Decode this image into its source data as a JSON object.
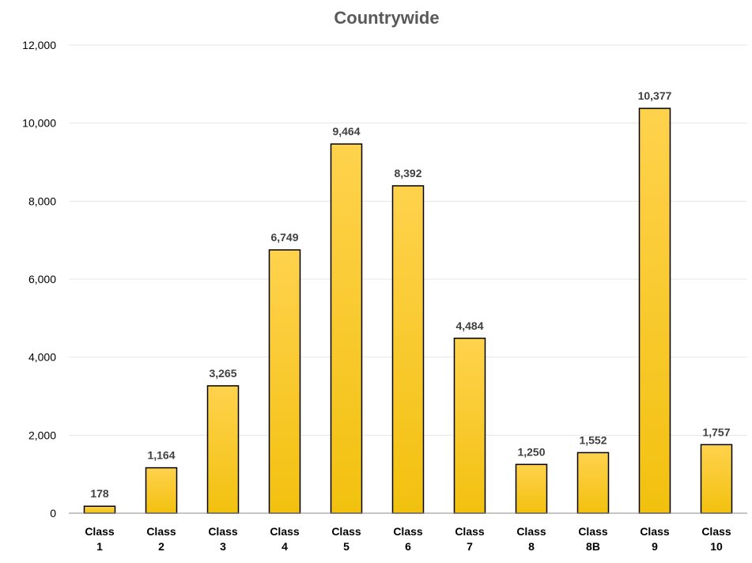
{
  "chart_data": {
    "type": "bar",
    "title": "Countrywide",
    "xlabel": "",
    "ylabel": "",
    "categories": [
      [
        "Class",
        "1"
      ],
      [
        "Class",
        "2"
      ],
      [
        "Class",
        "3"
      ],
      [
        "Class",
        "4"
      ],
      [
        "Class",
        "5"
      ],
      [
        "Class",
        "6"
      ],
      [
        "Class",
        "7"
      ],
      [
        "Class",
        "8"
      ],
      [
        "Class",
        "8B"
      ],
      [
        "Class",
        "9"
      ],
      [
        "Class",
        "10"
      ]
    ],
    "values": [
      178,
      1164,
      3265,
      6749,
      9464,
      8392,
      4484,
      1250,
      1552,
      10377,
      1757
    ],
    "value_labels": [
      "178",
      "1,164",
      "3,265",
      "6,749",
      "9,464",
      "8,392",
      "4,484",
      "1,250",
      "1,552",
      "10,377",
      "1,757"
    ],
    "ylim": [
      0,
      12000
    ],
    "yticks": [
      0,
      2000,
      4000,
      6000,
      8000,
      10000,
      12000
    ],
    "ytick_labels": [
      "0",
      "2,000",
      "4,000",
      "6,000",
      "8,000",
      "10,000",
      "12,000"
    ],
    "grid": true,
    "legend": "none",
    "colors": {
      "bar_top": "#ffd24d",
      "bar_bottom": "#f2c10f",
      "bar_border": "#000000",
      "title": "#595959",
      "data_label": "#404040"
    }
  }
}
